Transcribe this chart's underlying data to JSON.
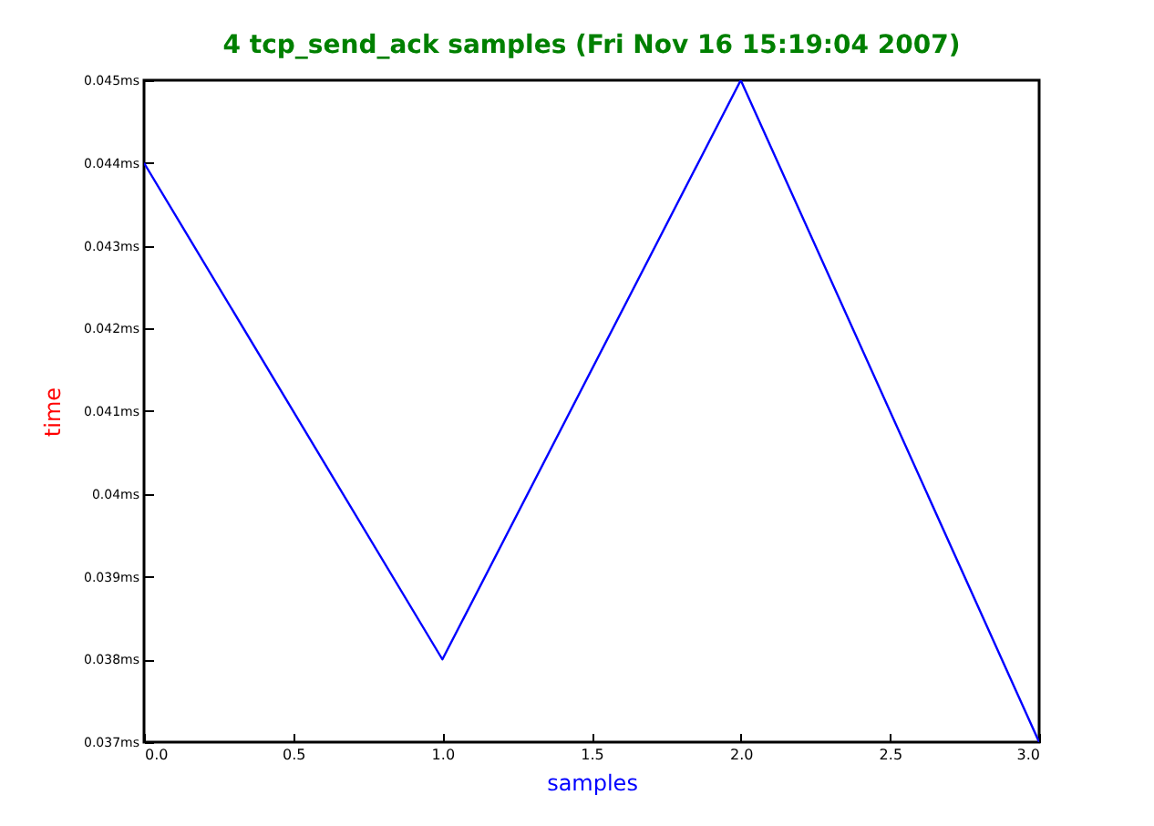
{
  "chart_data": {
    "type": "line",
    "title": "4 tcp_send_ack samples (Fri Nov 16 15:19:04 2007)",
    "xlabel": "samples",
    "ylabel": "time",
    "x": [
      0,
      1,
      2,
      3
    ],
    "series": [
      {
        "color": "#0000ff",
        "values": [
          0.044,
          0.038,
          0.045,
          0.037
        ]
      }
    ],
    "xlim": [
      0,
      3
    ],
    "xticks": [
      {
        "value": 0,
        "label": "0.0"
      },
      {
        "value": 0.5,
        "label": "0.5"
      },
      {
        "value": 1,
        "label": "1.0"
      },
      {
        "value": 1.5,
        "label": "1.5"
      },
      {
        "value": 2,
        "label": "2.0"
      },
      {
        "value": 2.5,
        "label": "2.5"
      },
      {
        "value": 3,
        "label": "3.0"
      }
    ],
    "ylim": [
      0.037,
      0.045
    ],
    "yticks": [
      {
        "value": 0.037,
        "label": "0.037ms"
      },
      {
        "value": 0.038,
        "label": "0.038ms"
      },
      {
        "value": 0.039,
        "label": "0.039ms"
      },
      {
        "value": 0.04,
        "label": "0.04ms"
      },
      {
        "value": 0.041,
        "label": "0.041ms"
      },
      {
        "value": 0.042,
        "label": "0.042ms"
      },
      {
        "value": 0.043,
        "label": "0.043ms"
      },
      {
        "value": 0.044,
        "label": "0.044ms"
      },
      {
        "value": 0.045,
        "label": "0.045ms"
      }
    ],
    "grid": false,
    "marker": "none",
    "line_style": "solid"
  }
}
